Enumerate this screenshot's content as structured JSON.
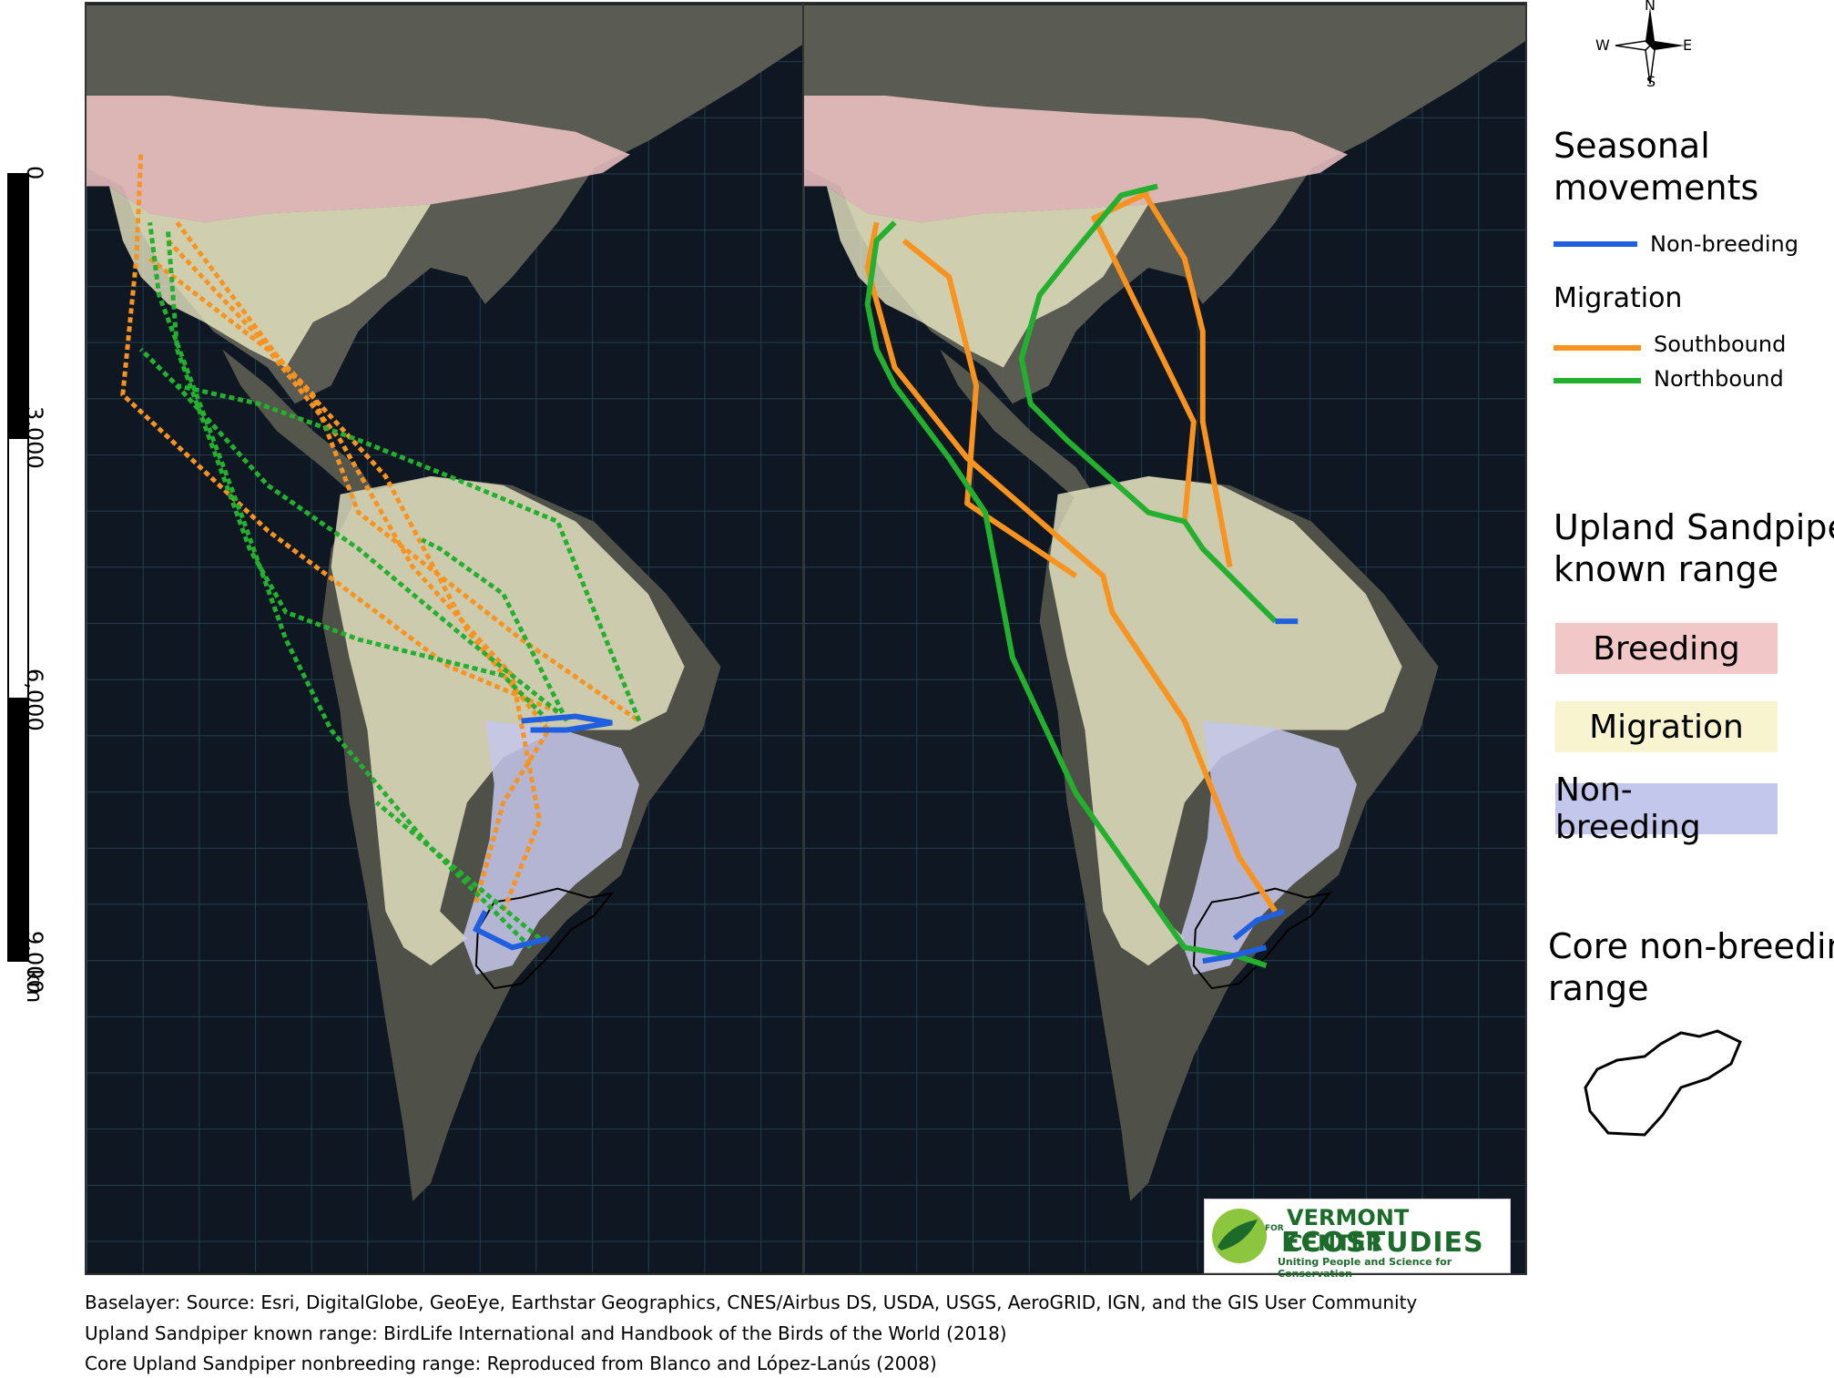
{
  "compass": {
    "n": "N",
    "s": "S",
    "e": "E",
    "w": "W"
  },
  "scale_bar": {
    "labels": [
      "0",
      "3,000",
      "6,000",
      "9,000"
    ],
    "unit": "km"
  },
  "legend": {
    "seasonal_title": "Seasonal\nmovements",
    "non_breeding_line": "Non-breeding",
    "migration_title": "Migration",
    "southbound": "Southbound",
    "northbound": "Northbound",
    "range_title": "Upland Sandpiper\nknown range",
    "range_breeding": "Breeding",
    "range_migration": "Migration",
    "range_nonbreeding": "Non-breeding",
    "core_title": "Core non-breeding\nrange"
  },
  "colors": {
    "non_breeding_track": "#1f5fe0",
    "southbound": "#f7931e",
    "northbound": "#22b02e",
    "breeding_fill": "#f2c7c7",
    "migration_fill": "#f7f4cf",
    "nonbreeding_fill": "#c4c7ec"
  },
  "logo": {
    "line1": "VERMONT CENTER",
    "line2": "FOR",
    "line3": "ECOSTUDIES",
    "tagline": "Uniting People and Science for Conservation"
  },
  "credits": [
    "Baselayer:  Source: Esri, DigitalGlobe, GeoEye, Earthstar Geographics, CNES/Airbus DS, USDA, USGS, AeroGRID, IGN, and the GIS User Community",
    "Upland Sandpiper known range: BirdLife International and Handbook of the Birds of the World (2018)",
    "Core Upland Sandpiper nonbreeding range: Reproduced from Blanco and López-Lanús (2008)"
  ]
}
